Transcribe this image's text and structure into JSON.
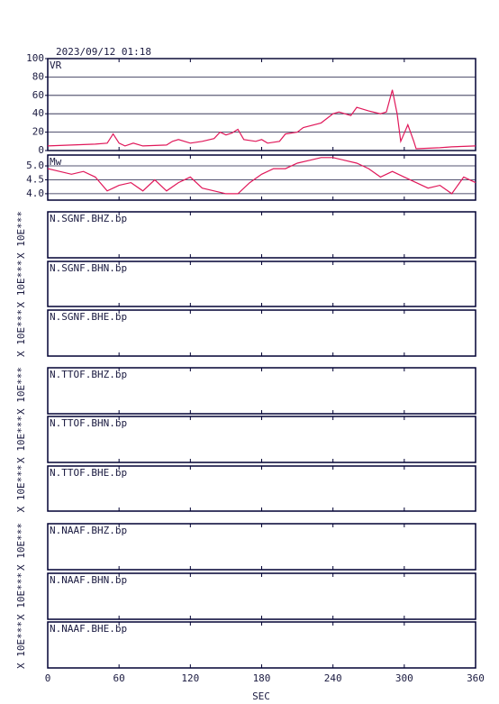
{
  "chart_data": [
    {
      "type": "line",
      "title": "2023/09/12 01:18",
      "ylabel": "VR",
      "color": "#e0185a",
      "grid": true,
      "xlim": [
        0,
        360
      ],
      "ylim": [
        0,
        100
      ],
      "yticks": [
        0,
        20,
        40,
        60,
        80,
        100
      ],
      "x": [
        0,
        20,
        40,
        50,
        55,
        60,
        65,
        72,
        80,
        100,
        105,
        110,
        120,
        130,
        140,
        145,
        150,
        155,
        160,
        165,
        175,
        180,
        185,
        195,
        200,
        210,
        215,
        230,
        240,
        245,
        255,
        260,
        270,
        280,
        285,
        290,
        294,
        297,
        303,
        308,
        310,
        330,
        340,
        360
      ],
      "values": [
        5,
        6,
        7,
        8,
        18,
        8,
        5,
        8,
        5,
        6,
        10,
        12,
        8,
        10,
        13,
        20,
        17,
        19,
        23,
        12,
        10,
        12,
        8,
        10,
        18,
        20,
        25,
        30,
        40,
        42,
        38,
        47,
        43,
        40,
        42,
        66,
        40,
        10,
        28,
        10,
        2,
        3,
        4,
        5
      ]
    },
    {
      "type": "line",
      "ylabel": "Mw",
      "color": "#e0185a",
      "grid": true,
      "xlim": [
        0,
        360
      ],
      "ylim": [
        3.77,
        5.39
      ],
      "yticks": [
        {
          "value": 4,
          "label": "4.0"
        },
        4.5,
        {
          "value": 5,
          "label": "5.0"
        }
      ],
      "x": [
        0,
        10,
        20,
        30,
        40,
        50,
        60,
        70,
        80,
        90,
        100,
        110,
        120,
        130,
        140,
        150,
        160,
        170,
        180,
        190,
        200,
        210,
        220,
        230,
        240,
        250,
        260,
        270,
        280,
        290,
        300,
        310,
        320,
        330,
        340,
        350,
        360
      ],
      "values": [
        4.9,
        4.8,
        4.7,
        4.8,
        4.6,
        4.1,
        4.3,
        4.4,
        4.1,
        4.5,
        4.1,
        4.4,
        4.6,
        4.2,
        4.1,
        4.0,
        4.0,
        4.4,
        4.7,
        4.9,
        4.9,
        5.1,
        5.2,
        5.3,
        5.3,
        5.2,
        5.1,
        4.9,
        4.6,
        4.8,
        4.6,
        4.4,
        4.2,
        4.3,
        4.0,
        4.6,
        4.4
      ]
    },
    {
      "type": "trace",
      "label": "N.SGNF.BHZ.bp",
      "ylabel": "X 10E***"
    },
    {
      "type": "trace",
      "label": "N.SGNF.BHN.bp",
      "ylabel": "X 10E***"
    },
    {
      "type": "trace",
      "label": "N.SGNF.BHE.bp",
      "ylabel": "X 10E***"
    },
    {
      "type": "trace",
      "label": "N.TTOF.BHZ.bp",
      "ylabel": "X 10E***"
    },
    {
      "type": "trace",
      "label": "N.TTOF.BHN.bp",
      "ylabel": "X 10E***"
    },
    {
      "type": "trace",
      "label": "N.TTOF.BHE.bp",
      "ylabel": "X 10E***"
    },
    {
      "type": "trace",
      "label": "N.NAAF.BHZ.bp",
      "ylabel": "X 10E***"
    },
    {
      "type": "trace",
      "label": "N.NAAF.BHN.bp",
      "ylabel": "X 10E***"
    },
    {
      "type": "trace",
      "label": "N.NAAF.BHE.bp",
      "ylabel": "X 10E***",
      "xlim": [
        0,
        360
      ],
      "xticks": [
        0,
        60,
        120,
        180,
        240,
        300,
        360
      ],
      "xlabel": "SEC"
    }
  ]
}
